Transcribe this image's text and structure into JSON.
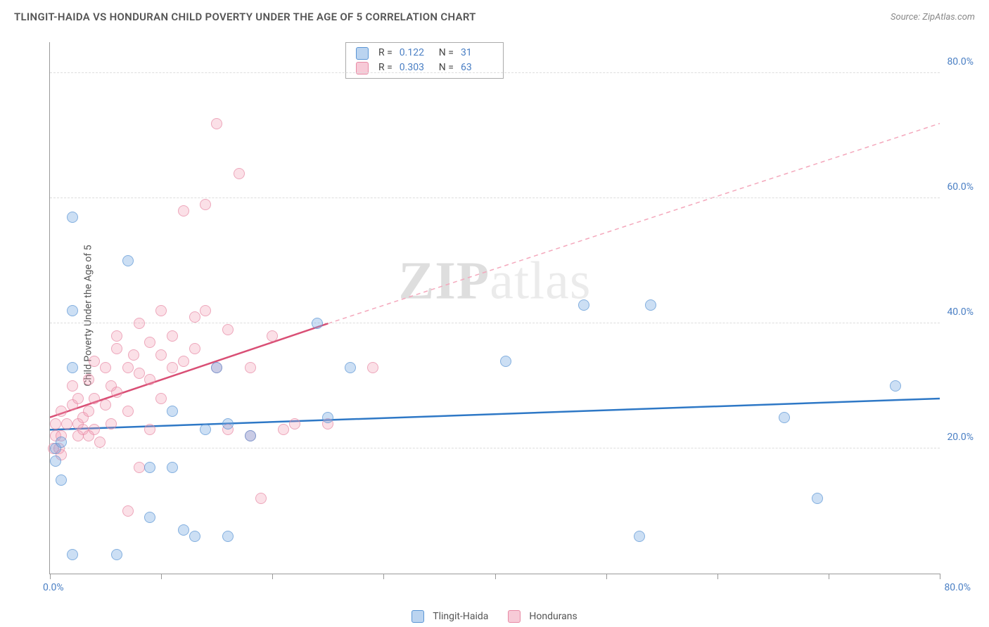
{
  "title": "TLINGIT-HAIDA VS HONDURAN CHILD POVERTY UNDER THE AGE OF 5 CORRELATION CHART",
  "source": "Source: ZipAtlas.com",
  "ylabel": "Child Poverty Under the Age of 5",
  "watermark_bold": "ZIP",
  "watermark_light": "atlas",
  "legend": {
    "series_a": "Tlingit-Haida",
    "series_b": "Hondurans"
  },
  "stats": {
    "series_a": {
      "r_label": "R =",
      "r": "0.122",
      "n_label": "N =",
      "n": "31"
    },
    "series_b": {
      "r_label": "R =",
      "r": "0.303",
      "n_label": "N =",
      "n": "63"
    }
  },
  "chart": {
    "type": "scatter",
    "xlim": [
      0,
      80
    ],
    "ylim": [
      0,
      85
    ],
    "xtick_positions": [
      0,
      10,
      20,
      30,
      40,
      50,
      60,
      70,
      80
    ],
    "xlabel_min": "0.0%",
    "xlabel_max": "80.0%",
    "ytick_labels": [
      "20.0%",
      "40.0%",
      "60.0%",
      "80.0%"
    ],
    "ytick_values": [
      20,
      40,
      60,
      80
    ],
    "background_color": "#ffffff",
    "grid_color": "#dddddd",
    "axis_color": "#999999",
    "value_color": "#4a7fc4",
    "marker_radius": 8,
    "series": {
      "blue": {
        "color_fill": "rgba(120,170,225,0.5)",
        "color_stroke": "#5a95d5",
        "trend": {
          "x1": 0,
          "y1": 23,
          "x2": 80,
          "y2": 28,
          "solid": true,
          "stroke": "#2e78c6",
          "width": 2.5
        },
        "points": [
          [
            2,
            57
          ],
          [
            2,
            42
          ],
          [
            2,
            33
          ],
          [
            1,
            21
          ],
          [
            0.5,
            18
          ],
          [
            1,
            15
          ],
          [
            2,
            3
          ],
          [
            7,
            50
          ],
          [
            9,
            17
          ],
          [
            9,
            9
          ],
          [
            6,
            3
          ],
          [
            11,
            26
          ],
          [
            11,
            17
          ],
          [
            12,
            7
          ],
          [
            13,
            6
          ],
          [
            15,
            33
          ],
          [
            16,
            24
          ],
          [
            16,
            6
          ],
          [
            18,
            22
          ],
          [
            24,
            40
          ],
          [
            25,
            25
          ],
          [
            27,
            33
          ],
          [
            41,
            34
          ],
          [
            48,
            43
          ],
          [
            54,
            43
          ],
          [
            53,
            6
          ],
          [
            66,
            25
          ],
          [
            69,
            12
          ],
          [
            76,
            30
          ],
          [
            0.5,
            20
          ],
          [
            14,
            23
          ]
        ]
      },
      "pink": {
        "color_fill": "rgba(240,150,175,0.4)",
        "color_stroke": "#e88aa5",
        "trend_solid": {
          "x1": 0,
          "y1": 25,
          "x2": 25,
          "y2": 40,
          "stroke": "#d94f75",
          "width": 2.5
        },
        "trend_dash": {
          "x1": 25,
          "y1": 40,
          "x2": 80,
          "y2": 72,
          "stroke": "#f4a8bc",
          "width": 1.5
        },
        "points": [
          [
            0.3,
            20
          ],
          [
            0.5,
            22
          ],
          [
            0.5,
            24
          ],
          [
            0.8,
            20
          ],
          [
            1,
            26
          ],
          [
            1,
            22
          ],
          [
            1,
            19
          ],
          [
            1.5,
            24
          ],
          [
            2,
            27
          ],
          [
            2,
            30
          ],
          [
            2.5,
            22
          ],
          [
            2.5,
            24
          ],
          [
            2.5,
            28
          ],
          [
            3,
            25
          ],
          [
            3,
            23
          ],
          [
            3.5,
            31
          ],
          [
            3.5,
            26
          ],
          [
            3.5,
            22
          ],
          [
            4,
            28
          ],
          [
            4,
            34
          ],
          [
            4,
            23
          ],
          [
            4.5,
            21
          ],
          [
            5,
            27
          ],
          [
            5,
            33
          ],
          [
            5.5,
            30
          ],
          [
            5.5,
            24
          ],
          [
            6,
            38
          ],
          [
            6,
            36
          ],
          [
            6,
            29
          ],
          [
            7,
            33
          ],
          [
            7,
            26
          ],
          [
            7,
            10
          ],
          [
            7.5,
            35
          ],
          [
            8,
            40
          ],
          [
            8,
            32
          ],
          [
            8,
            17
          ],
          [
            9,
            37
          ],
          [
            9,
            31
          ],
          [
            9,
            23
          ],
          [
            10,
            42
          ],
          [
            10,
            35
          ],
          [
            10,
            28
          ],
          [
            11,
            38
          ],
          [
            11,
            33
          ],
          [
            12,
            34
          ],
          [
            12,
            58
          ],
          [
            13,
            41
          ],
          [
            13,
            36
          ],
          [
            14,
            59
          ],
          [
            14,
            42
          ],
          [
            15,
            72
          ],
          [
            15,
            33
          ],
          [
            16,
            23
          ],
          [
            16,
            39
          ],
          [
            17,
            64
          ],
          [
            18,
            33
          ],
          [
            18,
            22
          ],
          [
            19,
            12
          ],
          [
            20,
            38
          ],
          [
            21,
            23
          ],
          [
            22,
            24
          ],
          [
            25,
            24
          ],
          [
            29,
            33
          ]
        ]
      }
    }
  }
}
